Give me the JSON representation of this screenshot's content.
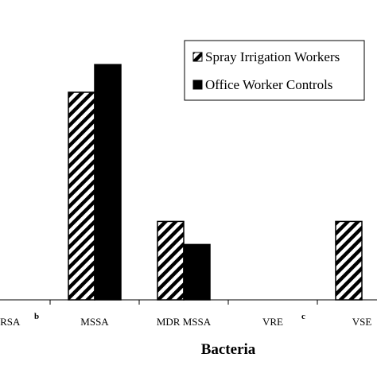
{
  "chart_data": {
    "type": "bar",
    "xlabel": "Bacteria",
    "ylabel": "",
    "categories": [
      "MRSA",
      "MSSA",
      "MDR MSSA",
      "VRE",
      "VSE"
    ],
    "category_notes": [
      "b",
      "",
      "",
      "c",
      ""
    ],
    "series": [
      {
        "name": "Spray Irrigation Workers",
        "pattern": "diagonal-hatch",
        "color": "#000000",
        "values": [
          0,
          4.5,
          1.7,
          0,
          1.7
        ]
      },
      {
        "name": "Office Worker Controls",
        "pattern": "solid",
        "color": "#000000",
        "values": [
          0,
          5.1,
          1.2,
          0,
          0
        ]
      }
    ],
    "ylim": [
      0,
      6
    ],
    "grid": false,
    "legend_position": "top-right"
  }
}
